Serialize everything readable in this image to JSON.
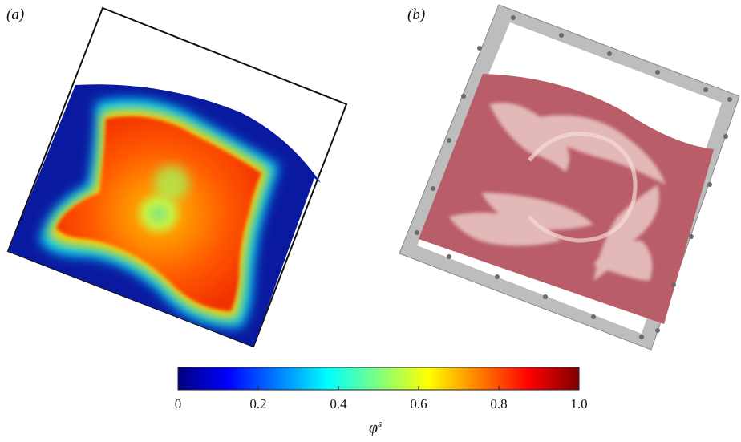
{
  "panels": {
    "a": {
      "label": "(a)"
    },
    "b": {
      "label": "(b)"
    }
  },
  "colorbar": {
    "title_symbol": "φ",
    "title_superscript": "s",
    "ticks": [
      "0",
      "0.2",
      "0.4",
      "0.6",
      "0.8",
      "1.0"
    ],
    "range": [
      0,
      1
    ],
    "colormap": "jet",
    "stops": [
      "#00007f",
      "#0000ff",
      "#007fff",
      "#00ffff",
      "#7fff7f",
      "#ffff00",
      "#ff7f00",
      "#ff0000",
      "#7f0000"
    ]
  },
  "colors": {
    "frame_line": "#111111",
    "sand": "#b5525c",
    "aluminium_frame": "#b8b8b8"
  }
}
